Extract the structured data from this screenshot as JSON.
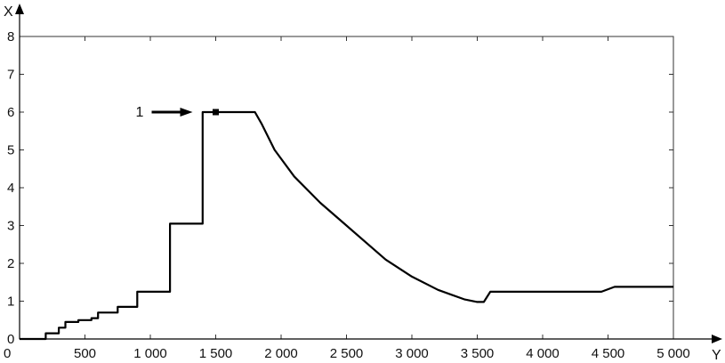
{
  "chart_data": {
    "type": "line",
    "xlabel": "Y",
    "ylabel": "X",
    "xlim": [
      0,
      5000
    ],
    "ylim": [
      0,
      8
    ],
    "x_ticks": [
      0,
      500,
      1000,
      1500,
      2000,
      2500,
      3000,
      3500,
      4000,
      4500,
      5000
    ],
    "x_tick_labels": [
      "0",
      "500",
      "1 000",
      "1 500",
      "2 000",
      "2 500",
      "3 000",
      "3 500",
      "4 000",
      "4 500",
      "5 000"
    ],
    "y_ticks": [
      0,
      1,
      2,
      3,
      4,
      5,
      6,
      7,
      8
    ],
    "y_tick_labels": [
      "0",
      "1",
      "2",
      "3",
      "4",
      "5",
      "6",
      "7",
      "8"
    ],
    "grid": false,
    "series": [
      {
        "x": [
          0,
          200,
          200,
          300,
          300,
          350,
          350,
          450,
          450,
          550,
          550,
          600,
          600,
          750,
          750,
          900,
          900,
          1150,
          1150,
          1400,
          1400,
          1800,
          1850,
          1950,
          2100,
          2300,
          2500,
          2800,
          3000,
          3200,
          3400,
          3500,
          3550,
          3600,
          4000,
          4450,
          4550,
          5000
        ],
        "y": [
          0,
          0,
          0.15,
          0.15,
          0.3,
          0.3,
          0.45,
          0.45,
          0.5,
          0.5,
          0.55,
          0.55,
          0.7,
          0.7,
          0.85,
          0.85,
          1.25,
          1.25,
          3.05,
          3.05,
          6.0,
          6.0,
          5.7,
          5.0,
          4.3,
          3.6,
          3.0,
          2.1,
          1.65,
          1.3,
          1.05,
          0.98,
          0.98,
          1.25,
          1.25,
          1.25,
          1.38,
          1.38
        ]
      }
    ],
    "marker": {
      "x": 1500,
      "y": 6.0
    },
    "annotations": [
      {
        "text": "1",
        "x": 1500,
        "y": 6.0
      }
    ]
  }
}
